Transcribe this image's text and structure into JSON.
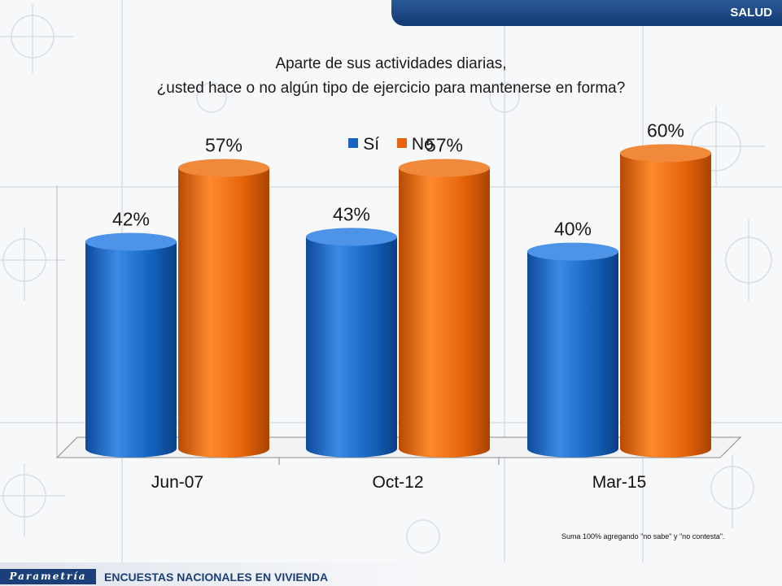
{
  "header": {
    "section_label": "SALUD"
  },
  "question": {
    "line1": "Aparte de sus actividades diarias,",
    "line2": "¿usted hace o no algún tipo de ejercicio para mantenerse en forma?"
  },
  "colors": {
    "si": "#1565c0",
    "no": "#e8650a",
    "brand": "#1b3f78"
  },
  "chart_data": {
    "type": "bar",
    "style": "3d-cylinder",
    "categories": [
      "Jun-07",
      "Oct-12",
      "Mar-15"
    ],
    "series": [
      {
        "name": "Sí",
        "values": [
          42,
          43,
          40
        ],
        "labels": [
          "42%",
          "43%",
          "40%"
        ]
      },
      {
        "name": "No",
        "values": [
          57,
          57,
          60
        ],
        "labels": [
          "57%",
          "57%",
          "60%"
        ]
      }
    ],
    "ylim": [
      0,
      80
    ],
    "legend_position": "top"
  },
  "footnote": "Suma 100%  agregando \"no sabe\" y \"no contesta\".",
  "footer": {
    "logo": "Parametría",
    "title": "ENCUESTAS NACIONALES  EN VIVIENDA"
  }
}
